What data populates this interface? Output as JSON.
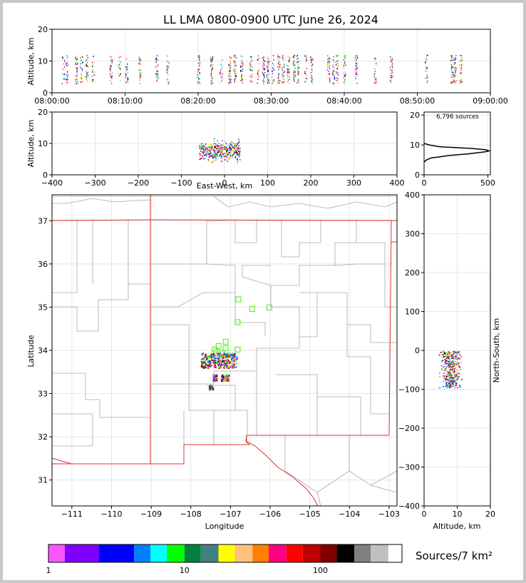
{
  "chart_data": [
    {
      "id": "time_height",
      "type": "scatter",
      "title": "LL LMA 0800-0900 UTC June 26, 2024",
      "xlabel": "",
      "ylabel": "Altitude, km",
      "xlim": [
        "08:00:00",
        "09:00:00"
      ],
      "xticks": [
        "08:00:00",
        "08:10:00",
        "08:20:00",
        "08:30:00",
        "08:40:00",
        "08:50:00",
        "09:00:00"
      ],
      "ylim": [
        0,
        20
      ],
      "yticks": [
        0,
        10,
        20
      ],
      "grid": true,
      "flash_times_min": [
        1.5,
        2.0,
        3.3,
        4.0,
        4.7,
        5.6,
        8.0,
        9.2,
        10.2,
        12.0,
        14.3,
        15.8,
        20.0,
        21.8,
        23.1,
        24.3,
        25.0,
        25.9,
        27.2,
        28.2,
        28.9,
        29.5,
        30.2,
        31.0,
        31.6,
        32.3,
        33.1,
        33.6,
        34.7,
        35.5,
        37.8,
        38.5,
        39.0,
        40.0,
        41.6,
        44.2,
        46.4,
        51.2,
        54.7,
        55.1,
        55.9
      ],
      "altitude_range_km": [
        3,
        12
      ]
    },
    {
      "id": "ew_height",
      "type": "scatter",
      "xlabel": "East-West, km",
      "ylabel": "Altitude, km",
      "xlim": [
        -400,
        400
      ],
      "xticks": [
        -400,
        -300,
        -200,
        -100,
        0,
        100,
        200,
        300,
        400
      ],
      "ylim": [
        0,
        20
      ],
      "yticks": [
        0,
        10,
        20
      ],
      "grid": true,
      "cluster": {
        "x_range_km": [
          -60,
          35
        ],
        "altitude_range_km": [
          3,
          12
        ]
      }
    },
    {
      "id": "altitude_histogram",
      "type": "line",
      "annotation": "6,796 sources",
      "xlim": [
        0,
        520
      ],
      "xticks": [
        0,
        500
      ],
      "ylim": [
        0,
        21
      ],
      "yticks": [
        0,
        10,
        20
      ],
      "x": [
        0,
        20,
        60,
        120,
        180,
        260,
        340,
        420,
        480,
        510,
        480,
        380,
        260,
        120,
        40,
        0
      ],
      "y": [
        4.3,
        5.0,
        5.7,
        6.0,
        6.4,
        6.7,
        7.0,
        7.4,
        7.7,
        8.0,
        8.4,
        8.8,
        9.1,
        9.4,
        10.0,
        10.5
      ]
    },
    {
      "id": "plan_view",
      "type": "map",
      "xlabel": "Longitude",
      "ylabel": "Latitude",
      "xlim": [
        -111.5,
        -102.8
      ],
      "xticks": [
        -111,
        -110,
        -109,
        -108,
        -107,
        -106,
        -105,
        -104,
        -103
      ],
      "ylim": [
        30.4,
        37.6
      ],
      "yticks": [
        31,
        32,
        33,
        34,
        35,
        36,
        37
      ],
      "grid": true,
      "stations": [
        [
          -106.8,
          35.18
        ],
        [
          -106.45,
          34.96
        ],
        [
          -106.02,
          34.99
        ],
        [
          -106.82,
          34.65
        ],
        [
          -107.4,
          34.02
        ],
        [
          -107.3,
          34.1
        ],
        [
          -107.12,
          34.2
        ],
        [
          -107.12,
          34.05
        ],
        [
          -107.35,
          33.97
        ],
        [
          -107.22,
          33.93
        ],
        [
          -107.12,
          33.88
        ],
        [
          -107.02,
          33.78
        ],
        [
          -106.82,
          34.02
        ]
      ],
      "source_clusters": [
        {
          "lon": [
            -107.75,
            -106.85
          ],
          "lat": [
            33.6,
            33.95
          ]
        },
        {
          "lon": [
            -107.45,
            -107.35
          ],
          "lat": [
            33.3,
            33.45
          ]
        },
        {
          "lon": [
            -107.25,
            -107.05
          ],
          "lat": [
            33.3,
            33.45
          ]
        },
        {
          "lon": [
            -107.55,
            -107.45
          ],
          "lat": [
            33.1,
            33.2
          ]
        }
      ]
    },
    {
      "id": "height_ns",
      "type": "scatter",
      "xlabel": "Altitude, km",
      "ylabel": "North-South, km",
      "xlim": [
        0,
        20
      ],
      "xticks": [
        0,
        10,
        20
      ],
      "ylim": [
        -400,
        400
      ],
      "yticks": [
        -400,
        -300,
        -200,
        -100,
        0,
        100,
        200,
        300,
        400
      ],
      "grid": true,
      "cluster": {
        "altitude_range_km": [
          3,
          12
        ],
        "ns_range_km": [
          -95,
          0
        ]
      }
    }
  ],
  "colorbar": {
    "label": "Sources/7 km²",
    "tick_labels": [
      "1",
      "10",
      "100"
    ],
    "tick_values": [
      1,
      10,
      100
    ],
    "colors": [
      "#ff55ff",
      "#8000ff",
      "#0000ff",
      "#0080ff",
      "#00ffff",
      "#00ff00",
      "#008040",
      "#408080",
      "#ffff00",
      "#ffc080",
      "#ff8000",
      "#ff0080",
      "#ff0000",
      "#c00000",
      "#800000",
      "#000000",
      "#808080",
      "#c0c0c0",
      "#ffffff"
    ]
  }
}
